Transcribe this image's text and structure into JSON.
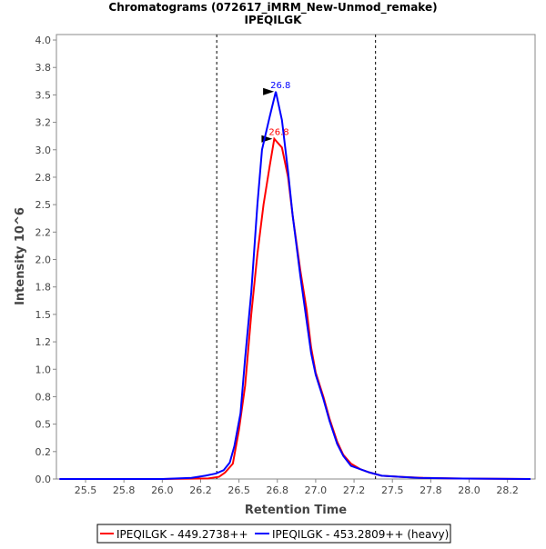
{
  "chart_data": {
    "type": "line",
    "title": "Chromatograms (072617_iMRM_New-Unmod_remake)",
    "subtitle": "IPEQILGK",
    "xlabel": "Retention Time",
    "ylabel": "Intensity 10^6",
    "xlim": [
      25.31,
      28.43
    ],
    "ylim": [
      0,
      4.05
    ],
    "xticks": [
      "25.5",
      "25.8",
      "26.0",
      "26.2",
      "26.5",
      "26.8",
      "27.0",
      "27.2",
      "27.5",
      "27.8",
      "28.0",
      "28.2"
    ],
    "xtick_values": [
      25.5,
      25.75,
      26.0,
      26.25,
      26.5,
      26.75,
      27.0,
      27.25,
      27.5,
      27.75,
      28.0,
      28.25
    ],
    "yticks": [
      "0.0",
      "0.2",
      "0.5",
      "0.8",
      "1.0",
      "1.2",
      "1.5",
      "1.8",
      "2.0",
      "2.2",
      "2.5",
      "2.8",
      "3.0",
      "3.2",
      "3.5",
      "3.8",
      "4.0"
    ],
    "ytick_values": [
      0,
      0.25,
      0.5,
      0.75,
      1.0,
      1.25,
      1.5,
      1.75,
      2.0,
      2.25,
      2.5,
      2.75,
      3.0,
      3.25,
      3.5,
      3.75,
      4.0
    ],
    "vlines": [
      26.355,
      27.39
    ],
    "legend_position": "bottom",
    "series": [
      {
        "name": "IPEQILGK - 449.2738++",
        "color": "#ff0000",
        "peak_label": "26.8",
        "peak": [
          26.73,
          3.1
        ],
        "x": [
          25.33,
          26.0,
          26.3,
          26.37,
          26.41,
          26.46,
          26.5,
          26.54,
          26.58,
          26.62,
          26.66,
          26.7,
          26.73,
          26.78,
          26.82,
          26.85,
          26.9,
          26.94,
          26.97,
          27.0,
          27.05,
          27.09,
          27.14,
          27.18,
          27.23,
          27.29,
          27.35,
          27.43,
          27.55,
          27.7,
          27.9,
          28.4
        ],
        "y": [
          0,
          0,
          0.005,
          0.02,
          0.06,
          0.14,
          0.45,
          0.85,
          1.5,
          2.05,
          2.5,
          2.85,
          3.1,
          3.02,
          2.75,
          2.4,
          1.9,
          1.55,
          1.2,
          0.97,
          0.75,
          0.55,
          0.34,
          0.22,
          0.14,
          0.09,
          0.06,
          0.03,
          0.02,
          0.01,
          0.005,
          0
        ]
      },
      {
        "name": "IPEQILGK - 453.2809++ (heavy)",
        "color": "#0000ff",
        "peak_label": "26.8",
        "peak": [
          26.74,
          3.53
        ],
        "x": [
          25.33,
          26.0,
          26.19,
          26.28,
          26.35,
          26.4,
          26.44,
          26.47,
          26.51,
          26.54,
          26.58,
          26.62,
          26.65,
          26.7,
          26.74,
          26.78,
          26.82,
          26.85,
          26.9,
          26.94,
          26.97,
          27.0,
          27.05,
          27.09,
          27.14,
          27.18,
          27.23,
          27.29,
          27.35,
          27.43,
          27.55,
          27.67,
          27.9,
          28.4
        ],
        "y": [
          0,
          0,
          0.01,
          0.03,
          0.05,
          0.08,
          0.15,
          0.3,
          0.6,
          1.1,
          1.7,
          2.5,
          3.0,
          3.3,
          3.53,
          3.27,
          2.8,
          2.4,
          1.85,
          1.45,
          1.15,
          0.95,
          0.73,
          0.53,
          0.32,
          0.21,
          0.12,
          0.09,
          0.06,
          0.03,
          0.02,
          0.01,
          0.005,
          0
        ]
      }
    ]
  }
}
